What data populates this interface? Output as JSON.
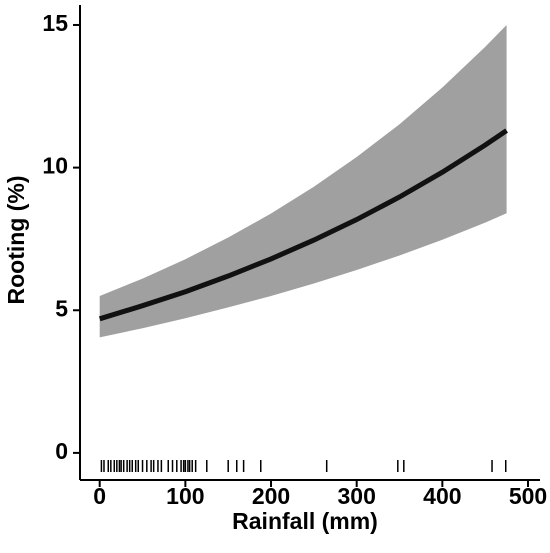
{
  "chart_data": {
    "type": "line",
    "x_label": "Rainfall (mm)",
    "y_label": "Rooting (%)",
    "x": [
      0,
      50,
      100,
      150,
      200,
      250,
      300,
      350,
      400,
      450,
      475
    ],
    "values": [
      4.7,
      5.16,
      5.65,
      6.2,
      6.8,
      7.46,
      8.18,
      8.97,
      9.84,
      10.79,
      11.3
    ],
    "lower": [
      4.05,
      4.37,
      4.72,
      5.1,
      5.5,
      5.94,
      6.41,
      6.92,
      7.47,
      8.07,
      8.4
    ],
    "upper": [
      5.5,
      6.11,
      6.79,
      7.55,
      8.39,
      9.33,
      10.37,
      11.52,
      12.81,
      14.23,
      15.0
    ],
    "color": "#111111",
    "band_color": "#a0a0a0",
    "rug": [
      2,
      5,
      10,
      13,
      17,
      20,
      23,
      25,
      28,
      32,
      35,
      38,
      42,
      45,
      50,
      55,
      60,
      63,
      68,
      72,
      80,
      85,
      90,
      95,
      98,
      100,
      103,
      105,
      108,
      112,
      125,
      150,
      160,
      168,
      188,
      265,
      348,
      355,
      458,
      474
    ],
    "xlim": [
      -23,
      514
    ],
    "ylim": [
      -0.95,
      15.7
    ],
    "xticks": [
      0,
      100,
      200,
      300,
      400,
      500
    ],
    "yticks": [
      0,
      5,
      10,
      15
    ],
    "grid": false
  }
}
